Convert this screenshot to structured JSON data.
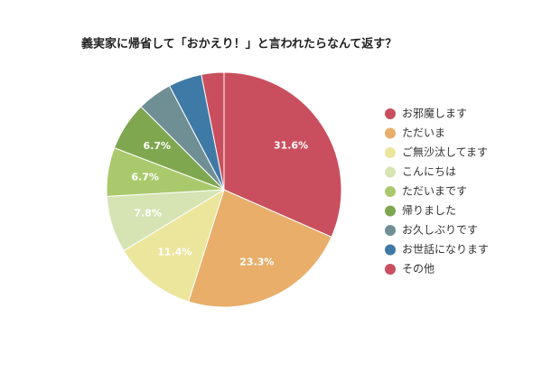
{
  "chart_data": {
    "type": "pie",
    "title": "義実家に帰省して「おかえり！」と言われたらなんて返す？",
    "categories": [
      "お邪魔します",
      "ただいま",
      "ご無沙汰してます",
      "こんにちは",
      "ただいまです",
      "帰りました",
      "お久しぶりです",
      "お世話になります",
      "その他"
    ],
    "values": [
      31.6,
      23.3,
      11.4,
      7.8,
      6.7,
      6.7,
      4.8,
      4.6,
      3.1
    ],
    "value_labels": [
      "31.6%",
      "23.3%",
      "11.4%",
      "7.8%",
      "6.7%",
      "6.7%",
      null,
      null,
      null
    ],
    "colors": [
      "#c94f5e",
      "#e8ae6a",
      "#ece59c",
      "#d6e4b4",
      "#aac96d",
      "#7fa74f",
      "#6f8f94",
      "#3f7aa6",
      "#c94f5e"
    ]
  }
}
